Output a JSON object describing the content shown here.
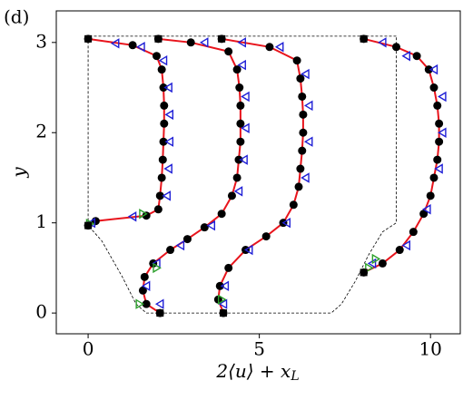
{
  "chart_data": {
    "type": "line",
    "panel_label": "(d)",
    "xlabel": {
      "main": "2⟨u⟩ + x",
      "sub": "L"
    },
    "ylabel": "y",
    "xlim": [
      -0.93,
      10.87
    ],
    "ylim": [
      -0.23,
      3.35
    ],
    "xticks": [
      0,
      5,
      10
    ],
    "yticks": [
      0,
      1,
      2,
      3
    ],
    "grid": false,
    "series": [
      {
        "color": "#000000",
        "line": "dashed",
        "marker": "none",
        "x": [
          9.0,
          0,
          0,
          0.4,
          1.0,
          1.4,
          1.7,
          7.1,
          7.4,
          7.8,
          8.2,
          8.6,
          9.0,
          9.0
        ],
        "y": [
          3.07,
          3.07,
          0.97,
          0.8,
          0.4,
          0.1,
          0.0,
          0.0,
          0.1,
          0.35,
          0.65,
          0.9,
          1.0,
          3.07
        ]
      },
      {
        "color": "#e8141c",
        "line": "solid",
        "marker": "circle",
        "x": [
          0,
          0.22,
          1.7,
          2.05,
          2.1,
          2.15,
          2.18,
          2.2,
          2.22,
          2.22,
          2.2,
          2.15,
          2.0,
          1.3,
          0
        ],
        "y": [
          0.97,
          1.02,
          1.08,
          1.15,
          1.3,
          1.5,
          1.7,
          1.9,
          2.1,
          2.3,
          2.5,
          2.7,
          2.85,
          2.97,
          3.04
        ]
      },
      {
        "color": "#e8141c",
        "line": "solid",
        "marker": "circle",
        "x": [
          2.1,
          1.7,
          1.6,
          1.65,
          1.9,
          2.4,
          2.9,
          3.4,
          3.9,
          4.2,
          4.35,
          4.4,
          4.45,
          4.45,
          4.45,
          4.42,
          4.35,
          4.1,
          3.0,
          2.05
        ],
        "y": [
          0.0,
          0.1,
          0.25,
          0.4,
          0.55,
          0.7,
          0.82,
          0.95,
          1.1,
          1.3,
          1.5,
          1.7,
          1.9,
          2.1,
          2.3,
          2.5,
          2.7,
          2.9,
          3.0,
          3.04
        ]
      },
      {
        "color": "#e8141c",
        "line": "solid",
        "marker": "circle",
        "x": [
          3.95,
          3.8,
          3.85,
          4.1,
          4.6,
          5.2,
          5.7,
          6.0,
          6.15,
          6.2,
          6.25,
          6.28,
          6.28,
          6.25,
          6.2,
          6.1,
          5.3,
          3.9
        ],
        "y": [
          0.0,
          0.15,
          0.3,
          0.5,
          0.7,
          0.85,
          1.0,
          1.2,
          1.4,
          1.6,
          1.8,
          2.0,
          2.2,
          2.4,
          2.6,
          2.8,
          2.95,
          3.04
        ]
      },
      {
        "color": "#e8141c",
        "line": "solid",
        "marker": "circle",
        "x": [
          8.05,
          8.6,
          9.1,
          9.5,
          9.8,
          10.0,
          10.1,
          10.2,
          10.25,
          10.25,
          10.2,
          10.1,
          9.95,
          9.6,
          9.0,
          8.05
        ],
        "y": [
          0.45,
          0.55,
          0.7,
          0.9,
          1.1,
          1.3,
          1.5,
          1.7,
          1.9,
          2.1,
          2.3,
          2.5,
          2.7,
          2.85,
          2.95,
          3.04
        ]
      },
      {
        "color": "#1f1fd6",
        "line": "none",
        "marker": "triangle-left",
        "x": [
          0.1,
          1.3,
          2.3,
          2.35,
          2.38,
          2.38,
          2.35,
          2.2,
          1.55,
          0.8,
          2.1,
          1.7,
          2.0,
          2.7,
          3.6,
          4.4,
          4.55,
          4.6,
          4.6,
          4.5,
          3.4,
          3.95,
          4.0,
          4.7,
          5.8,
          6.35,
          6.45,
          6.45,
          6.35,
          5.6,
          4.5,
          8.3,
          9.3,
          9.9,
          10.25,
          10.35,
          10.35,
          10.1,
          9.3,
          8.6
        ],
        "y": [
          1.0,
          1.07,
          1.3,
          1.6,
          1.9,
          2.2,
          2.5,
          2.8,
          2.95,
          2.99,
          0.1,
          0.3,
          0.55,
          0.75,
          0.97,
          1.35,
          1.7,
          2.05,
          2.4,
          2.75,
          3.0,
          0.1,
          0.3,
          0.7,
          1.0,
          1.5,
          1.9,
          2.3,
          2.65,
          2.95,
          3.0,
          0.55,
          0.75,
          1.15,
          1.6,
          2.0,
          2.4,
          2.7,
          2.85,
          3.0
        ]
      },
      {
        "color": "#2ca02c",
        "line": "none",
        "marker": "triangle-right",
        "x": [
          0.05,
          1.6,
          1.5,
          2.0,
          3.9,
          8.2,
          8.4
        ],
        "y": [
          0.99,
          1.1,
          0.1,
          0.5,
          0.15,
          0.5,
          0.6
        ]
      },
      {
        "color": "#000000",
        "line": "none",
        "marker": "square",
        "x": [
          0,
          0,
          2.05,
          2.1,
          3.9,
          3.95,
          8.05,
          8.05
        ],
        "y": [
          3.04,
          0.97,
          3.04,
          0.0,
          3.04,
          0.0,
          3.04,
          0.45
        ]
      }
    ]
  }
}
